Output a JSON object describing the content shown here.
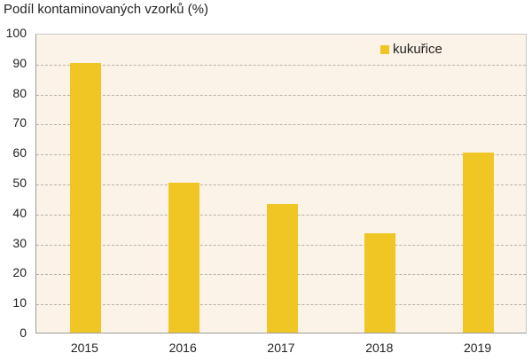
{
  "chart_data": {
    "type": "bar",
    "title": "Podíl kontaminovaných vzorků (%)",
    "xlabel": "",
    "ylabel": "Podíl kontaminovaných vzorků (%)",
    "categories": [
      "2015",
      "2016",
      "2017",
      "2018",
      "2019"
    ],
    "series": [
      {
        "name": "kukuřice",
        "color": "#f0c625",
        "values": [
          90,
          50,
          43,
          33,
          60
        ]
      }
    ],
    "ylim": [
      0,
      100
    ],
    "yticks": [
      "0",
      "10",
      "20",
      "30",
      "40",
      "50",
      "60",
      "70",
      "80",
      "90",
      "100"
    ],
    "grid": true,
    "legend_position": "top-right",
    "background": "#fcf3e8"
  }
}
